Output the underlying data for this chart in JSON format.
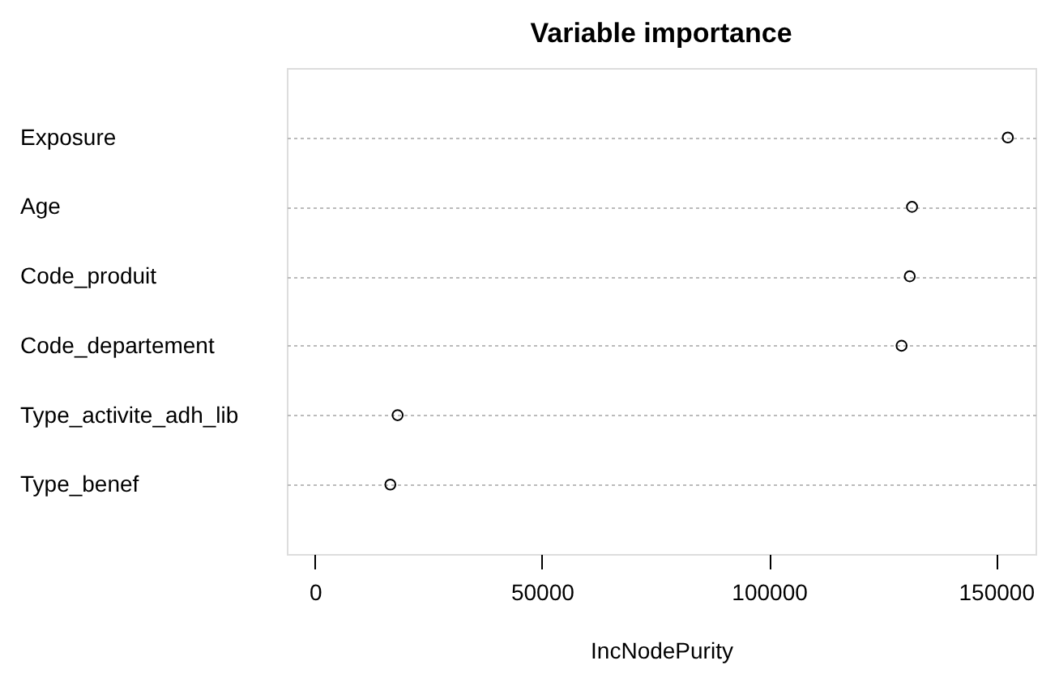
{
  "chart_data": {
    "type": "scatter",
    "title": "Variable importance",
    "xlabel": "IncNodePurity",
    "categories": [
      "Exposure",
      "Age",
      "Code_produit",
      "Code_departement",
      "Type_activite_adh_lib",
      "Type_benef"
    ],
    "orientation": "horizontal",
    "values": [
      152600,
      131500,
      131000,
      129200,
      18200,
      16600
    ],
    "color": "#000000",
    "marker": "circle",
    "grid": "y",
    "xlim": [
      -6200,
      158700
    ],
    "xticks": [
      0,
      50000,
      100000,
      150000
    ]
  }
}
